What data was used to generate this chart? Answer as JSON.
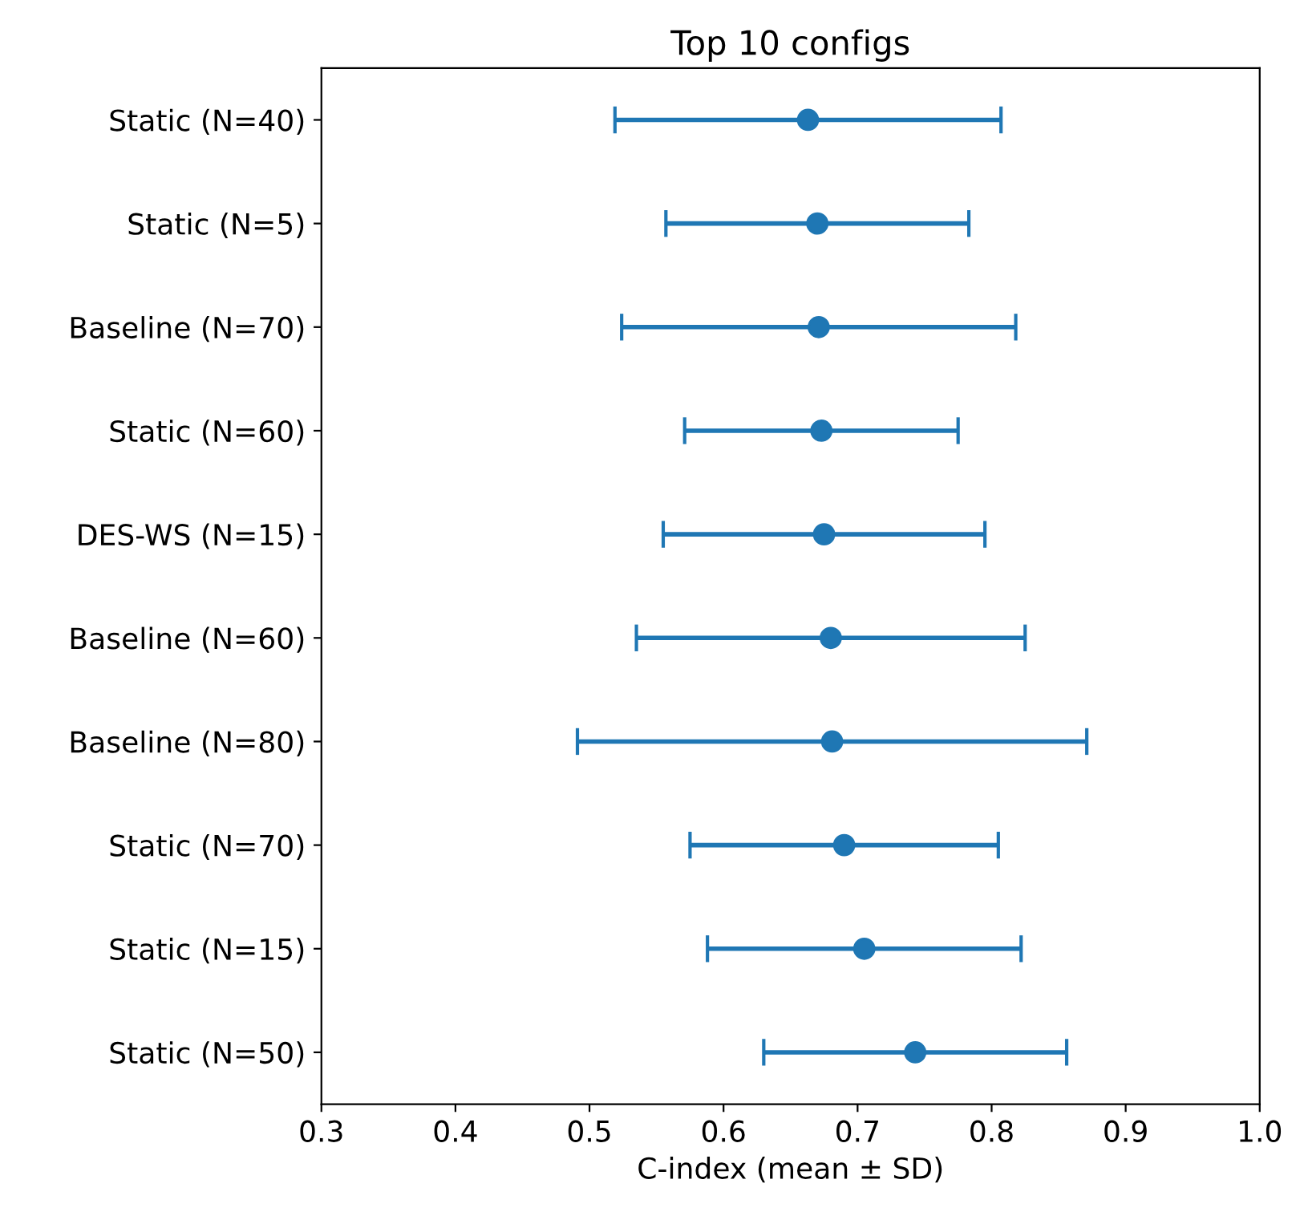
{
  "chart_data": {
    "type": "scatter",
    "orientation": "horizontal",
    "title": "Top 10 configs",
    "xlabel": "C-index (mean ± SD)",
    "categories": [
      "Static (N=40)",
      "Static (N=5)",
      "Baseline (N=70)",
      "Static (N=60)",
      "DES-WS (N=15)",
      "Baseline (N=60)",
      "Baseline (N=80)",
      "Static (N=70)",
      "Static (N=15)",
      "Static (N=50)"
    ],
    "values": [
      0.663,
      0.67,
      0.671,
      0.673,
      0.675,
      0.68,
      0.681,
      0.69,
      0.705,
      0.743
    ],
    "errors": [
      0.144,
      0.113,
      0.147,
      0.102,
      0.12,
      0.145,
      0.19,
      0.115,
      0.117,
      0.113
    ],
    "color": "#1f77b4",
    "marker": "circle",
    "xlim": [
      0.3,
      1.0
    ],
    "xticks": [
      0.3,
      0.4,
      0.5,
      0.6,
      0.7,
      0.8,
      0.9,
      {
        "value": 1,
        "label": "1.0"
      }
    ],
    "grid": false,
    "legend": false
  }
}
